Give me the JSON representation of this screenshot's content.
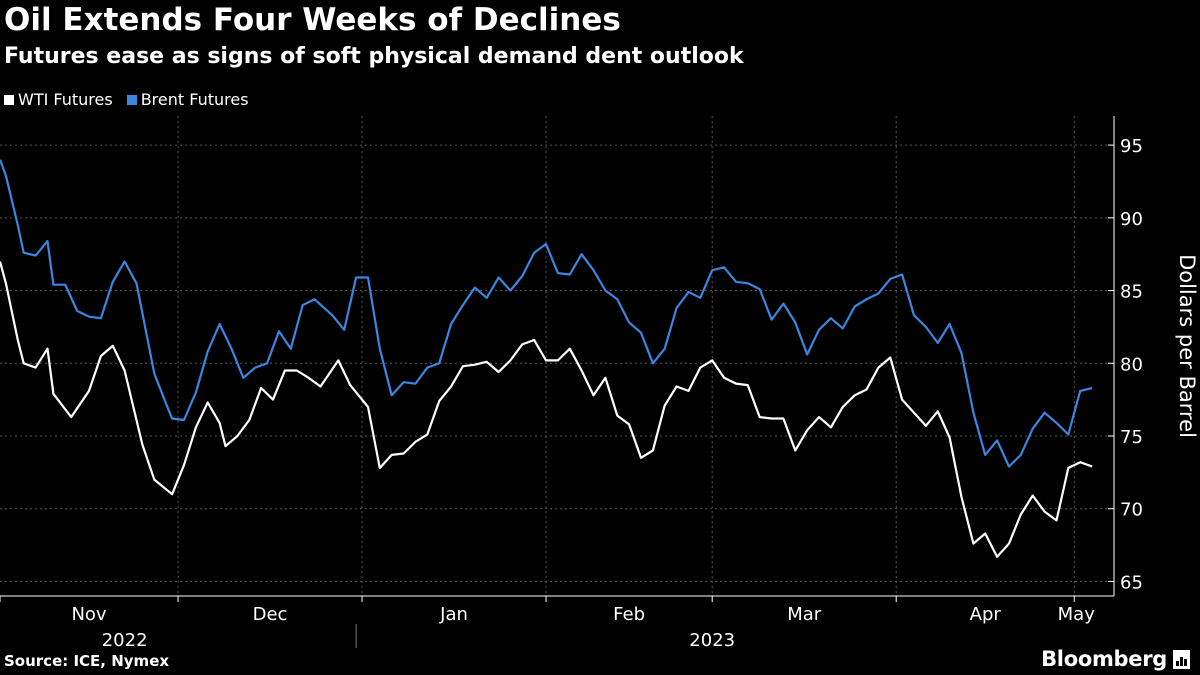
{
  "title": "Oil Extends Four Weeks of Declines",
  "subtitle": "Futures ease as signs of soft physical demand dent outlook",
  "source": "Source: ICE, Nymex",
  "brand": "Bloomberg",
  "colors": {
    "wti": "#ffffff",
    "brent": "#3b86e0",
    "grid": "#5a5a5a",
    "background": "#000000"
  },
  "chart_data": {
    "type": "line",
    "title": "Oil Extends Four Weeks of Declines",
    "subtitle": "Futures ease as signs of soft physical demand dent outlook",
    "xlabel": "",
    "ylabel": "Dollars per Barrel",
    "ylim": [
      64,
      97
    ],
    "yticks": [
      65,
      70,
      75,
      80,
      85,
      90,
      95
    ],
    "y_axis_side": "right",
    "grid": "horizontal dashed",
    "legend": "top-left",
    "x_range": [
      "2022-11-01",
      "2023-05-05"
    ],
    "month_ticks": [
      {
        "label": "Nov",
        "date": "2022-11-01"
      },
      {
        "label": "Dec",
        "date": "2022-12-01"
      },
      {
        "label": "Jan",
        "date": "2023-01-01"
      },
      {
        "label": "Feb",
        "date": "2023-02-01"
      },
      {
        "label": "Mar",
        "date": "2023-03-01"
      },
      {
        "label": "Apr",
        "date": "2023-04-01"
      },
      {
        "label": "May",
        "date": "2023-05-01"
      }
    ],
    "year_labels": [
      {
        "label": "2022",
        "date": "2022-11-22"
      },
      {
        "label": "2023",
        "date": "2023-03-01"
      }
    ],
    "year_divider": "2022-12-31",
    "series": [
      {
        "name": "WTI Futures",
        "color": "#ffffff",
        "points": [
          [
            "2022-11-01",
            87.0
          ],
          [
            "2022-11-02",
            85.5
          ],
          [
            "2022-11-04",
            81.6
          ],
          [
            "2022-11-05",
            80.0
          ],
          [
            "2022-11-07",
            79.7
          ],
          [
            "2022-11-09",
            81.0
          ],
          [
            "2022-11-10",
            77.9
          ],
          [
            "2022-11-13",
            76.3
          ],
          [
            "2022-11-16",
            78.1
          ],
          [
            "2022-11-18",
            80.5
          ],
          [
            "2022-11-20",
            81.2
          ],
          [
            "2022-11-22",
            79.5
          ],
          [
            "2022-11-25",
            74.4
          ],
          [
            "2022-11-27",
            72.0
          ],
          [
            "2022-11-30",
            71.0
          ],
          [
            "2022-12-02",
            73.0
          ],
          [
            "2022-12-04",
            75.6
          ],
          [
            "2022-12-06",
            77.3
          ],
          [
            "2022-12-08",
            75.9
          ],
          [
            "2022-12-09",
            74.3
          ],
          [
            "2022-12-11",
            75.0
          ],
          [
            "2022-12-13",
            76.1
          ],
          [
            "2022-12-15",
            78.3
          ],
          [
            "2022-12-17",
            77.5
          ],
          [
            "2022-12-19",
            79.5
          ],
          [
            "2022-12-21",
            79.5
          ],
          [
            "2022-12-23",
            79.0
          ],
          [
            "2022-12-25",
            78.4
          ],
          [
            "2022-12-28",
            80.2
          ],
          [
            "2022-12-30",
            78.5
          ],
          [
            "2023-01-02",
            77.0
          ],
          [
            "2023-01-04",
            72.8
          ],
          [
            "2023-01-06",
            73.7
          ],
          [
            "2023-01-08",
            73.8
          ],
          [
            "2023-01-10",
            74.6
          ],
          [
            "2023-01-12",
            75.1
          ],
          [
            "2023-01-14",
            77.4
          ],
          [
            "2023-01-16",
            78.4
          ],
          [
            "2023-01-18",
            79.8
          ],
          [
            "2023-01-20",
            79.9
          ],
          [
            "2023-01-22",
            80.1
          ],
          [
            "2023-01-24",
            79.4
          ],
          [
            "2023-01-26",
            80.2
          ],
          [
            "2023-01-28",
            81.3
          ],
          [
            "2023-01-30",
            81.6
          ],
          [
            "2023-02-01",
            80.2
          ],
          [
            "2023-02-03",
            80.2
          ],
          [
            "2023-02-05",
            81.0
          ],
          [
            "2023-02-07",
            79.5
          ],
          [
            "2023-02-09",
            77.8
          ],
          [
            "2023-02-11",
            79.0
          ],
          [
            "2023-02-13",
            76.4
          ],
          [
            "2023-02-15",
            75.8
          ],
          [
            "2023-02-17",
            73.5
          ],
          [
            "2023-02-19",
            74.0
          ],
          [
            "2023-02-21",
            77.1
          ],
          [
            "2023-02-23",
            78.4
          ],
          [
            "2023-02-25",
            78.1
          ],
          [
            "2023-02-27",
            79.7
          ],
          [
            "2023-03-01",
            80.2
          ],
          [
            "2023-03-03",
            79.0
          ],
          [
            "2023-03-05",
            78.6
          ],
          [
            "2023-03-07",
            78.5
          ],
          [
            "2023-03-09",
            76.3
          ],
          [
            "2023-03-11",
            76.2
          ],
          [
            "2023-03-13",
            76.2
          ],
          [
            "2023-03-15",
            74.0
          ],
          [
            "2023-03-17",
            75.4
          ],
          [
            "2023-03-19",
            76.3
          ],
          [
            "2023-03-21",
            75.6
          ],
          [
            "2023-03-23",
            77.0
          ],
          [
            "2023-03-25",
            77.8
          ],
          [
            "2023-03-27",
            78.2
          ],
          [
            "2023-03-29",
            79.7
          ],
          [
            "2023-03-31",
            80.4
          ],
          [
            "2023-04-02",
            77.5
          ],
          [
            "2023-04-04",
            76.6
          ],
          [
            "2023-04-06",
            75.7
          ],
          [
            "2023-04-08",
            76.7
          ],
          [
            "2023-04-10",
            74.9
          ],
          [
            "2023-04-12",
            70.8
          ],
          [
            "2023-04-14",
            67.6
          ],
          [
            "2023-04-16",
            68.3
          ],
          [
            "2023-04-18",
            66.7
          ],
          [
            "2023-04-20",
            67.6
          ],
          [
            "2023-04-22",
            69.6
          ],
          [
            "2023-04-24",
            70.9
          ],
          [
            "2023-04-26",
            69.8
          ],
          [
            "2023-04-28",
            69.2
          ],
          [
            "2023-04-30",
            72.8
          ],
          [
            "2023-05-02",
            73.2
          ],
          [
            "2023-05-04",
            72.9
          ]
        ]
      },
      {
        "name": "Brent Futures",
        "color": "#3b86e0",
        "points": []
      }
    ]
  }
}
